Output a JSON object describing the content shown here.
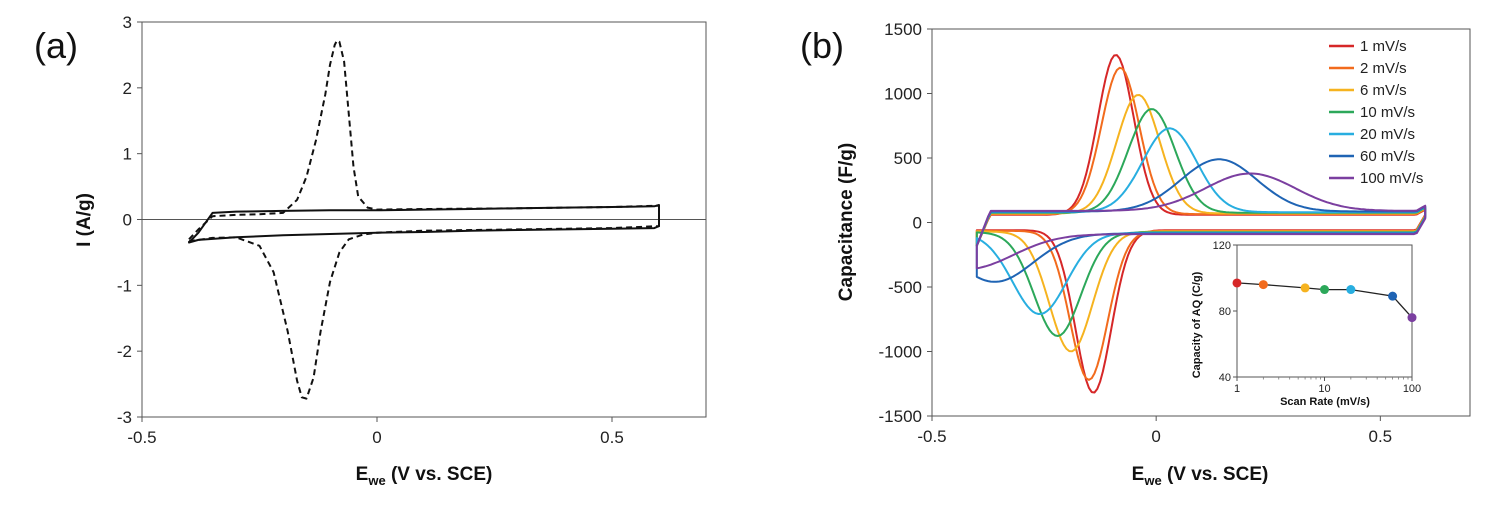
{
  "figure": {
    "panel_a_label": "(a)",
    "panel_b_label": "(b)"
  },
  "chart_data": [
    {
      "id": "a",
      "type": "line",
      "title": "",
      "xlabel_main": "E",
      "xlabel_sub": "we",
      "xlabel_rest": " (V vs. SCE)",
      "ylabel": "I (A/g)",
      "xlim": [
        -0.5,
        0.7
      ],
      "ylim": [
        -3,
        3
      ],
      "xticks": [
        -0.5,
        0,
        0.5
      ],
      "xtick_labels": [
        "-0.5",
        "0",
        "0.5"
      ],
      "yticks": [
        -3,
        -2,
        -1,
        0,
        1,
        2,
        3
      ],
      "ytick_labels": [
        "-3",
        "-2",
        "-1",
        "0",
        "1",
        "2",
        "3"
      ],
      "series": [
        {
          "name": "solid",
          "color": "#111111",
          "dash": "solid",
          "x": [
            -0.4,
            -0.38,
            -0.35,
            -0.3,
            -0.2,
            -0.1,
            0.0,
            0.1,
            0.2,
            0.3,
            0.4,
            0.5,
            0.59,
            0.6,
            0.6,
            0.59,
            0.5,
            0.4,
            0.3,
            0.2,
            0.1,
            0.0,
            -0.1,
            -0.2,
            -0.3,
            -0.38,
            -0.4
          ],
          "y": [
            -0.35,
            -0.2,
            0.1,
            0.12,
            0.13,
            0.14,
            0.14,
            0.15,
            0.16,
            0.17,
            0.18,
            0.19,
            0.2,
            0.22,
            -0.1,
            -0.13,
            -0.14,
            -0.15,
            -0.16,
            -0.17,
            -0.19,
            -0.2,
            -0.22,
            -0.24,
            -0.27,
            -0.31,
            -0.35
          ]
        },
        {
          "name": "dashed",
          "color": "#111111",
          "dash": "dashed",
          "x": [
            -0.4,
            -0.38,
            -0.35,
            -0.3,
            -0.25,
            -0.2,
            -0.17,
            -0.15,
            -0.13,
            -0.11,
            -0.1,
            -0.09,
            -0.085,
            -0.08,
            -0.07,
            -0.06,
            -0.05,
            -0.04,
            -0.02,
            0.0,
            0.1,
            0.3,
            0.5,
            0.6,
            0.6,
            0.5,
            0.3,
            0.1,
            0.0,
            -0.03,
            -0.06,
            -0.08,
            -0.1,
            -0.12,
            -0.135,
            -0.15,
            -0.16,
            -0.17,
            -0.19,
            -0.22,
            -0.25,
            -0.3,
            -0.35,
            -0.4
          ],
          "y": [
            -0.3,
            -0.15,
            0.05,
            0.07,
            0.08,
            0.1,
            0.3,
            0.65,
            1.2,
            1.9,
            2.35,
            2.65,
            2.72,
            2.7,
            2.4,
            1.6,
            0.8,
            0.35,
            0.18,
            0.15,
            0.16,
            0.17,
            0.19,
            0.21,
            -0.1,
            -0.13,
            -0.15,
            -0.17,
            -0.2,
            -0.23,
            -0.3,
            -0.5,
            -0.95,
            -1.7,
            -2.4,
            -2.72,
            -2.7,
            -2.45,
            -1.7,
            -0.8,
            -0.4,
            -0.27,
            -0.28,
            -0.33
          ]
        }
      ]
    },
    {
      "id": "b",
      "type": "line",
      "title": "",
      "xlabel_main": "E",
      "xlabel_sub": "we",
      "xlabel_rest": " (V vs. SCE)",
      "ylabel": "Capacitance (F/g)",
      "xlim": [
        -0.5,
        0.7
      ],
      "ylim": [
        -1500,
        1500
      ],
      "xticks": [
        -0.5,
        0,
        0.5
      ],
      "xtick_labels": [
        "-0.5",
        "0",
        "0.5"
      ],
      "yticks": [
        -1500,
        -1000,
        -500,
        0,
        500,
        1000,
        1500
      ],
      "ytick_labels": [
        "-1500",
        "-1000",
        "-500",
        "0",
        "500",
        "1000",
        "1500"
      ],
      "legend_position": "top-right",
      "series": [
        {
          "name": "1 mV/s",
          "color": "#d62728",
          "ox_peak_x": -0.09,
          "ox_peak_y": 1300,
          "red_peak_x": -0.14,
          "red_peak_y": -1320,
          "width": 0.04,
          "bg": 60
        },
        {
          "name": "2 mV/s",
          "color": "#f26b1d",
          "ox_peak_x": -0.08,
          "ox_peak_y": 1200,
          "red_peak_x": -0.15,
          "red_peak_y": -1220,
          "width": 0.042,
          "bg": 65
        },
        {
          "name": "6 mV/s",
          "color": "#f6b31f",
          "ox_peak_x": -0.04,
          "ox_peak_y": 990,
          "red_peak_x": -0.19,
          "red_peak_y": -1000,
          "width": 0.048,
          "bg": 70
        },
        {
          "name": "10 mV/s",
          "color": "#2ca85a",
          "ox_peak_x": -0.01,
          "ox_peak_y": 880,
          "red_peak_x": -0.22,
          "red_peak_y": -880,
          "width": 0.052,
          "bg": 75
        },
        {
          "name": "20 mV/s",
          "color": "#28aee0",
          "ox_peak_x": 0.03,
          "ox_peak_y": 730,
          "red_peak_x": -0.26,
          "red_peak_y": -710,
          "width": 0.06,
          "bg": 80
        },
        {
          "name": "60 mV/s",
          "color": "#1f64b4",
          "ox_peak_x": 0.14,
          "ox_peak_y": 490,
          "red_peak_x": -0.36,
          "red_peak_y": -460,
          "width": 0.085,
          "bg": 85
        },
        {
          "name": "100 mV/s",
          "color": "#7b3fa0",
          "ox_peak_x": 0.21,
          "ox_peak_y": 380,
          "red_peak_x": -0.42,
          "red_peak_y": -360,
          "width": 0.1,
          "bg": 90
        }
      ]
    },
    {
      "id": "b-inset",
      "type": "scatter",
      "title": "",
      "xlabel": "Scan Rate (mV/s)",
      "ylabel": "Capacity of AQ (C/g)",
      "xscale": "log",
      "xlim": [
        1,
        100
      ],
      "ylim": [
        40,
        120
      ],
      "xticks": [
        1,
        10,
        100
      ],
      "xtick_labels": [
        "1",
        "10",
        "100"
      ],
      "yticks": [
        40,
        80,
        120
      ],
      "ytick_labels": [
        "40",
        "80",
        "120"
      ],
      "x": [
        1,
        2,
        6,
        10,
        20,
        60,
        100
      ],
      "y": [
        97,
        96,
        94,
        93,
        93,
        89,
        76
      ],
      "point_colors": [
        "#d62728",
        "#f26b1d",
        "#f6b31f",
        "#2ca85a",
        "#28aee0",
        "#1f64b4",
        "#7b3fa0"
      ]
    }
  ]
}
